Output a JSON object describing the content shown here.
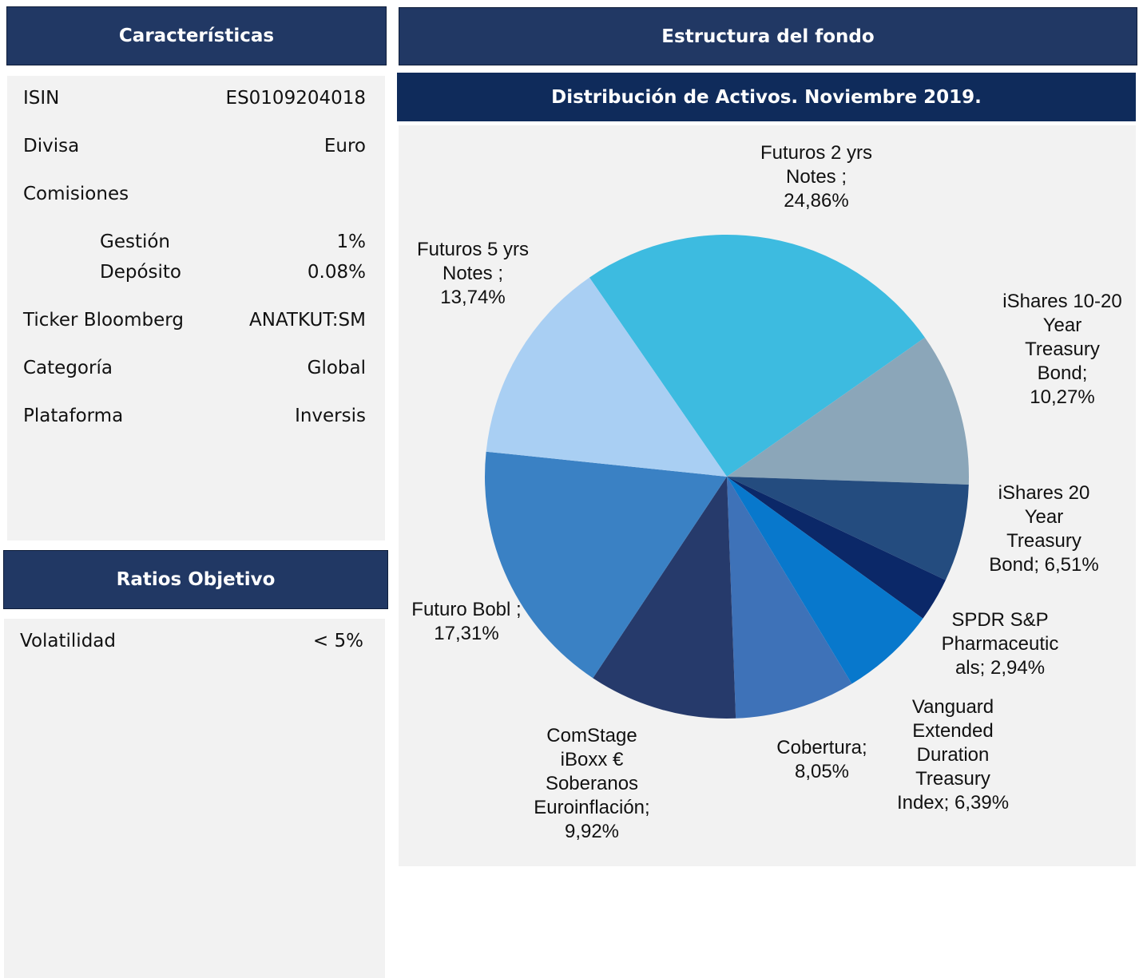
{
  "characteristics": {
    "title": "Características",
    "rows": [
      {
        "label": "ISIN",
        "value": "ES0109204018"
      },
      {
        "label": "Divisa",
        "value": "Euro"
      },
      {
        "label": "Comisiones"
      },
      {
        "label": "Gestión",
        "value": "1%"
      },
      {
        "label": "Depósito",
        "value": "0.08%"
      },
      {
        "label": "Ticker Bloomberg",
        "value": "ANATKUT:SM"
      },
      {
        "label": "Categoría",
        "value": "Global"
      },
      {
        "label": "Plataforma",
        "value": "Inversis"
      }
    ]
  },
  "ratios": {
    "title": "Ratios Objetivo",
    "rows": [
      {
        "label": "Volatilidad",
        "value": "< 5%"
      }
    ]
  },
  "structure": {
    "title": "Estructura del fondo"
  },
  "chart_data": {
    "type": "pie",
    "title": "Distribución de Activos. Noviembre 2019.",
    "categories": [
      "Futuros 2 yrs\nNotes ;",
      "iShares 10-20\nYear\nTreasury\nBond;",
      "iShares 20\nYear\nTreasury\nBond;",
      "SPDR S&P\nPharmaceutic\nals;",
      "Vanguard\nExtended\nDuration\nTreasury\nIndex;",
      "Cobertura;",
      "ComStage\niBoxx €\nSoberanos\nEuroinflación;",
      "Futuro Bobl ;",
      "Futuros  5 yrs\nNotes  ;"
    ],
    "values": [
      24.86,
      10.27,
      6.51,
      2.94,
      6.39,
      8.05,
      9.92,
      17.31,
      13.74
    ],
    "value_labels": [
      "24,86%",
      "10,27%",
      "6,51%",
      "2,94%",
      "6,39%",
      "8,05%",
      "9,92%",
      "17,31%",
      "13,74%"
    ],
    "colors": [
      "#3dbbe0",
      "#8ba6b9",
      "#244c7f",
      "#0b2868",
      "#0878cc",
      "#3e72b8",
      "#263a6b",
      "#3a81c4",
      "#a9cff3"
    ]
  }
}
